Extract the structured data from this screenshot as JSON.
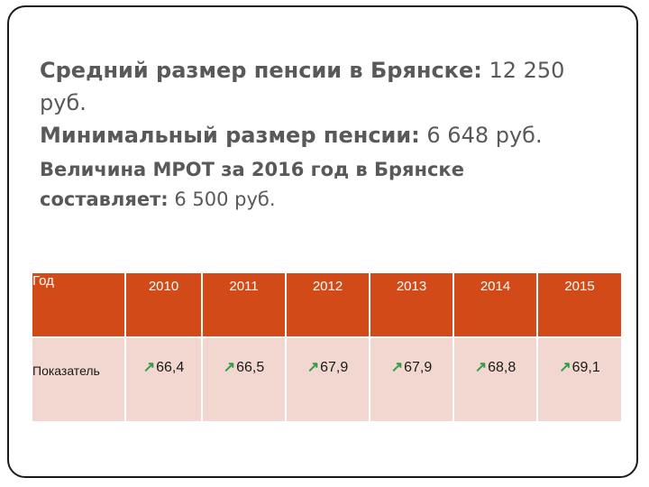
{
  "text": {
    "line1_label": "Средний размер пенсии в Брянске:",
    "line1_value": " 12 250",
    "line2": "руб.",
    "line3_label": "Минимальный размер пенсии:",
    "line3_value": " 6 648 руб.",
    "line4": "Величина МРОТ за 2016 год в Брянске",
    "line5_label": "составляет:",
    "line5_value": " 6 500 руб."
  },
  "table": {
    "header_label": "Год",
    "row_label": "Показатель",
    "arrow_icon": "↗",
    "years": [
      "2010",
      "2011",
      "2012",
      "2013",
      "2014",
      "2015"
    ],
    "values": [
      "66,4",
      "66,5",
      "67,9",
      "67,9",
      "68,8",
      "69,1"
    ],
    "colors": {
      "header_bg": "#d24a17",
      "row_bg": "#f2d7d0",
      "arrow": "#2ea043"
    }
  }
}
